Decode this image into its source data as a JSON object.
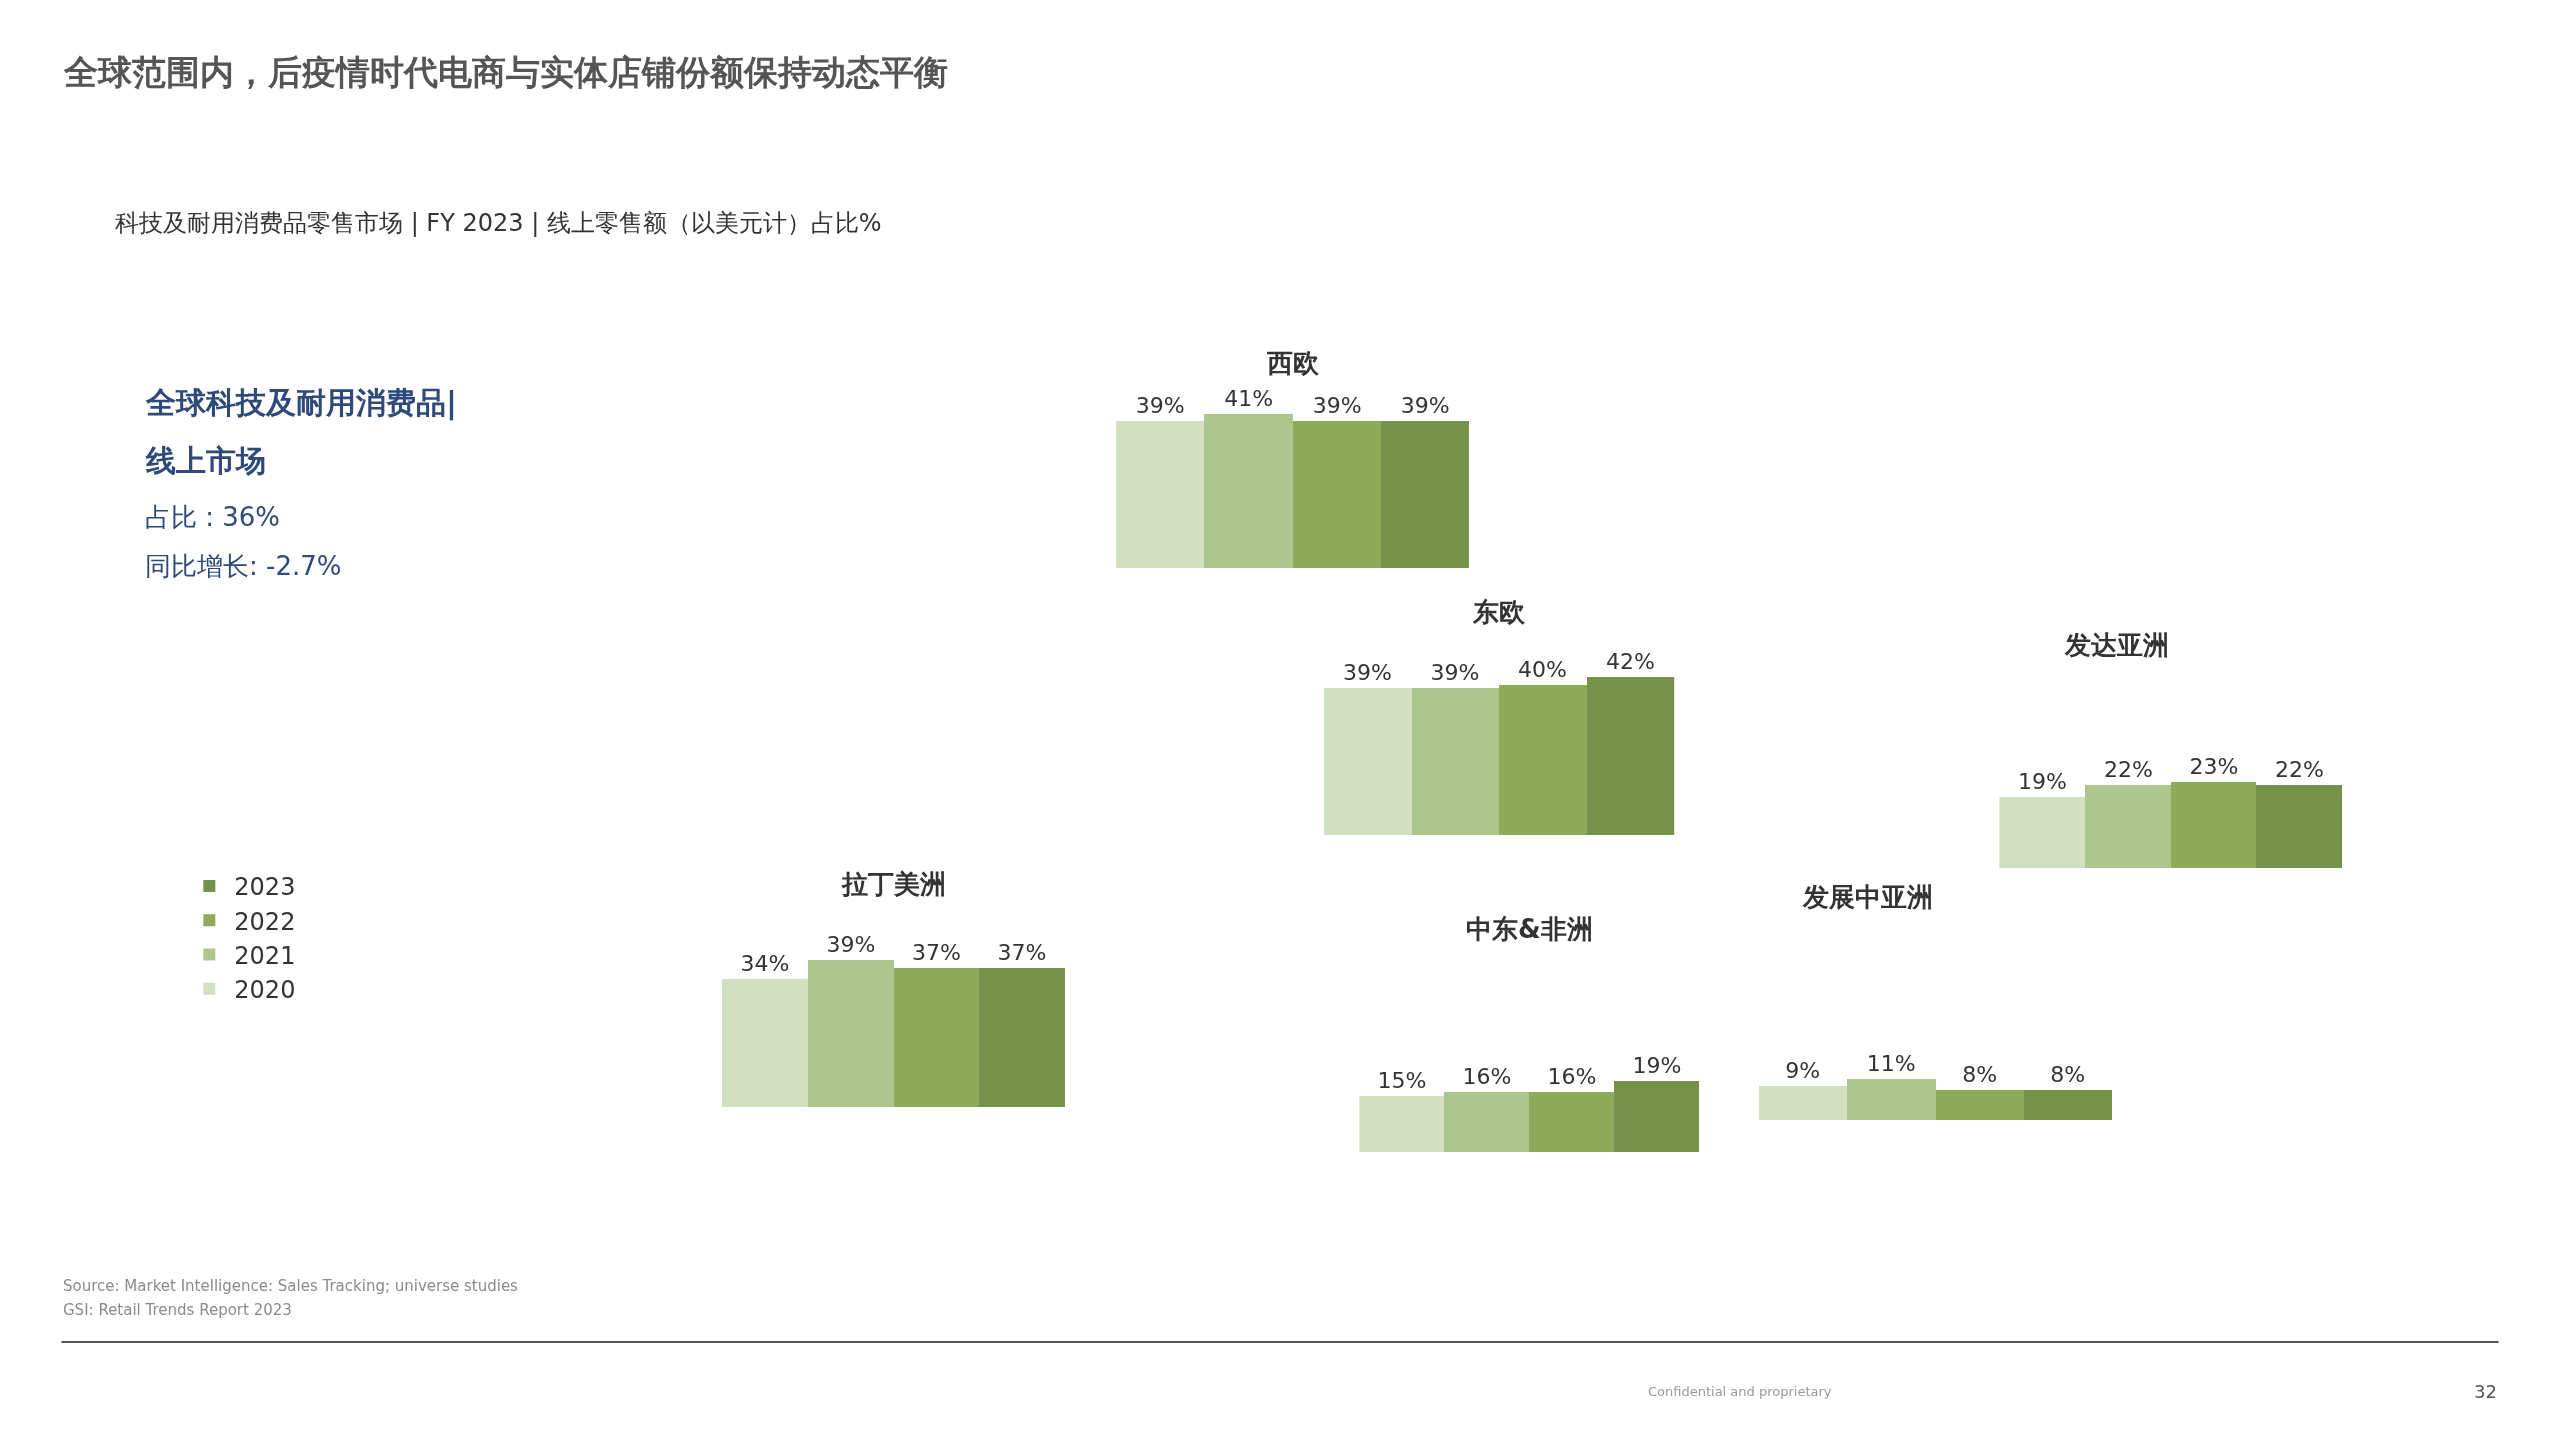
{
  "chart_data": [
    {
      "type": "other",
      "title": "全球范围内，后疫情时代电商与实体店铺份额保持动态平衡",
      "subtitle": "科技及耐用消费品零售市场 | FY 2023 | 线上零售额（以美元计）占比%",
      "annotations": [
        "全球科技及耐用消费品|",
        "线上市场",
        "占比 : 36%",
        "同比增长: -2.7%",
        "Source: Market Intelligence: Sales Tracking; universe studies",
        "GSI: Retail Trends Report 2023",
        "Confidential and proprietary",
        "32"
      ]
    },
    {
      "type": "bar",
      "title": "西欧",
      "categories": [
        null
      ],
      "tick_labels": false,
      "legend": "left",
      "series": [
        {
          "name": "2020",
          "color": "#d3dfc1",
          "values": [
            39
          ],
          "value_labels": [
            "39%"
          ]
        },
        {
          "name": "2021",
          "color": "#aec58e",
          "values": [
            41
          ],
          "value_labels": [
            "41%"
          ]
        },
        {
          "name": "2022",
          "color": "#8eab5a",
          "values": [
            39
          ],
          "value_labels": [
            "39%"
          ]
        },
        {
          "name": "2023",
          "color": "#76914a",
          "values": [
            39
          ],
          "value_labels": [
            "39%"
          ]
        }
      ]
    },
    {
      "type": "bar",
      "title": "东欧",
      "categories": [
        null
      ],
      "tick_labels": false,
      "series": [
        {
          "name": "2020",
          "color": "#d3dfc1",
          "values": [
            39
          ],
          "value_labels": [
            "39%"
          ]
        },
        {
          "name": "2021",
          "color": "#aec58e",
          "values": [
            39
          ],
          "value_labels": [
            "39%"
          ]
        },
        {
          "name": "2022",
          "color": "#8eab5a",
          "values": [
            40
          ],
          "value_labels": [
            "40%"
          ]
        },
        {
          "name": "2023",
          "color": "#76914a",
          "values": [
            42
          ],
          "value_labels": [
            "42%"
          ]
        }
      ]
    },
    {
      "type": "bar",
      "title": "发达亚洲",
      "categories": [
        null
      ],
      "tick_labels": false,
      "series": [
        {
          "name": "2020",
          "color": "#d3dfc1",
          "values": [
            19
          ],
          "value_labels": [
            "19%"
          ]
        },
        {
          "name": "2021",
          "color": "#aec58e",
          "values": [
            22
          ],
          "value_labels": [
            "22%"
          ]
        },
        {
          "name": "2022",
          "color": "#8eab5a",
          "values": [
            23
          ],
          "value_labels": [
            "23%"
          ]
        },
        {
          "name": "2023",
          "color": "#76914a",
          "values": [
            22
          ],
          "value_labels": [
            "22%"
          ]
        }
      ]
    },
    {
      "type": "bar",
      "title": "拉丁美洲",
      "categories": [
        null
      ],
      "tick_labels": false,
      "series": [
        {
          "name": "2020",
          "color": "#d3dfc1",
          "values": [
            34
          ],
          "value_labels": [
            "34%"
          ]
        },
        {
          "name": "2021",
          "color": "#aec58e",
          "values": [
            39
          ],
          "value_labels": [
            "39%"
          ]
        },
        {
          "name": "2022",
          "color": "#8eab5a",
          "values": [
            37
          ],
          "value_labels": [
            "37%"
          ]
        },
        {
          "name": "2023",
          "color": "#76914a",
          "values": [
            37
          ],
          "value_labels": [
            "37%"
          ]
        }
      ]
    },
    {
      "type": "bar",
      "title": "中东&非洲",
      "categories": [
        null
      ],
      "tick_labels": false,
      "series": [
        {
          "name": "2020",
          "color": "#d3dfc1",
          "values": [
            15
          ],
          "value_labels": [
            "15%"
          ]
        },
        {
          "name": "2021",
          "color": "#aec58e",
          "values": [
            16
          ],
          "value_labels": [
            "16%"
          ]
        },
        {
          "name": "2022",
          "color": "#8eab5a",
          "values": [
            16
          ],
          "value_labels": [
            "16%"
          ]
        },
        {
          "name": "2023",
          "color": "#76914a",
          "values": [
            19
          ],
          "value_labels": [
            "19%"
          ]
        }
      ]
    },
    {
      "type": "bar",
      "title": "发展中亚洲",
      "categories": [
        null
      ],
      "tick_labels": false,
      "series": [
        {
          "name": "2020",
          "color": "#d3dfc1",
          "values": [
            9
          ],
          "value_labels": [
            "9%"
          ]
        },
        {
          "name": "2021",
          "color": "#aec58e",
          "values": [
            11
          ],
          "value_labels": [
            "11%"
          ]
        },
        {
          "name": "2022",
          "color": "#8eab5a",
          "values": [
            8
          ],
          "value_labels": [
            "8%"
          ]
        },
        {
          "name": "2023",
          "color": "#76914a",
          "values": [
            8
          ],
          "value_labels": [
            "8%"
          ]
        }
      ]
    }
  ]
}
